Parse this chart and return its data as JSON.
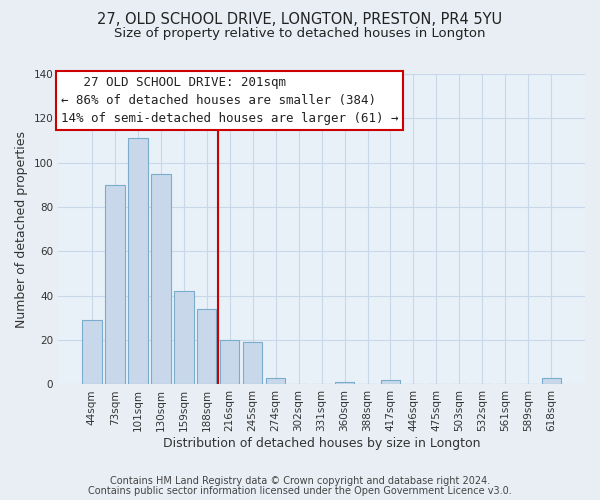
{
  "title": "27, OLD SCHOOL DRIVE, LONGTON, PRESTON, PR4 5YU",
  "subtitle": "Size of property relative to detached houses in Longton",
  "xlabel": "Distribution of detached houses by size in Longton",
  "ylabel": "Number of detached properties",
  "bar_labels": [
    "44sqm",
    "73sqm",
    "101sqm",
    "130sqm",
    "159sqm",
    "188sqm",
    "216sqm",
    "245sqm",
    "274sqm",
    "302sqm",
    "331sqm",
    "360sqm",
    "388sqm",
    "417sqm",
    "446sqm",
    "475sqm",
    "503sqm",
    "532sqm",
    "561sqm",
    "589sqm",
    "618sqm"
  ],
  "bar_values": [
    29,
    90,
    111,
    95,
    42,
    34,
    20,
    19,
    3,
    0,
    0,
    1,
    0,
    2,
    0,
    0,
    0,
    0,
    0,
    0,
    3
  ],
  "bar_color": "#c8d8ea",
  "bar_edge_color": "#7aaccc",
  "vline_x_idx": 5.5,
  "vline_color": "#cc0000",
  "annotation_line1": "   27 OLD SCHOOL DRIVE: 201sqm",
  "annotation_line2": "← 86% of detached houses are smaller (384)",
  "annotation_line3": "14% of semi-detached houses are larger (61) →",
  "box_edge_color": "#cc0000",
  "box_face_color": "#ffffff",
  "ylim": [
    0,
    140
  ],
  "yticks": [
    0,
    20,
    40,
    60,
    80,
    100,
    120,
    140
  ],
  "footer_line1": "Contains HM Land Registry data © Crown copyright and database right 2024.",
  "footer_line2": "Contains public sector information licensed under the Open Government Licence v3.0.",
  "bg_color": "#e8eef4",
  "plot_bg_color": "#e8f0f8",
  "grid_color": "#c8d8e8",
  "title_fontsize": 10.5,
  "subtitle_fontsize": 9.5,
  "tick_fontsize": 7.5,
  "axis_label_fontsize": 9,
  "footer_fontsize": 7,
  "annotation_fontsize": 9
}
